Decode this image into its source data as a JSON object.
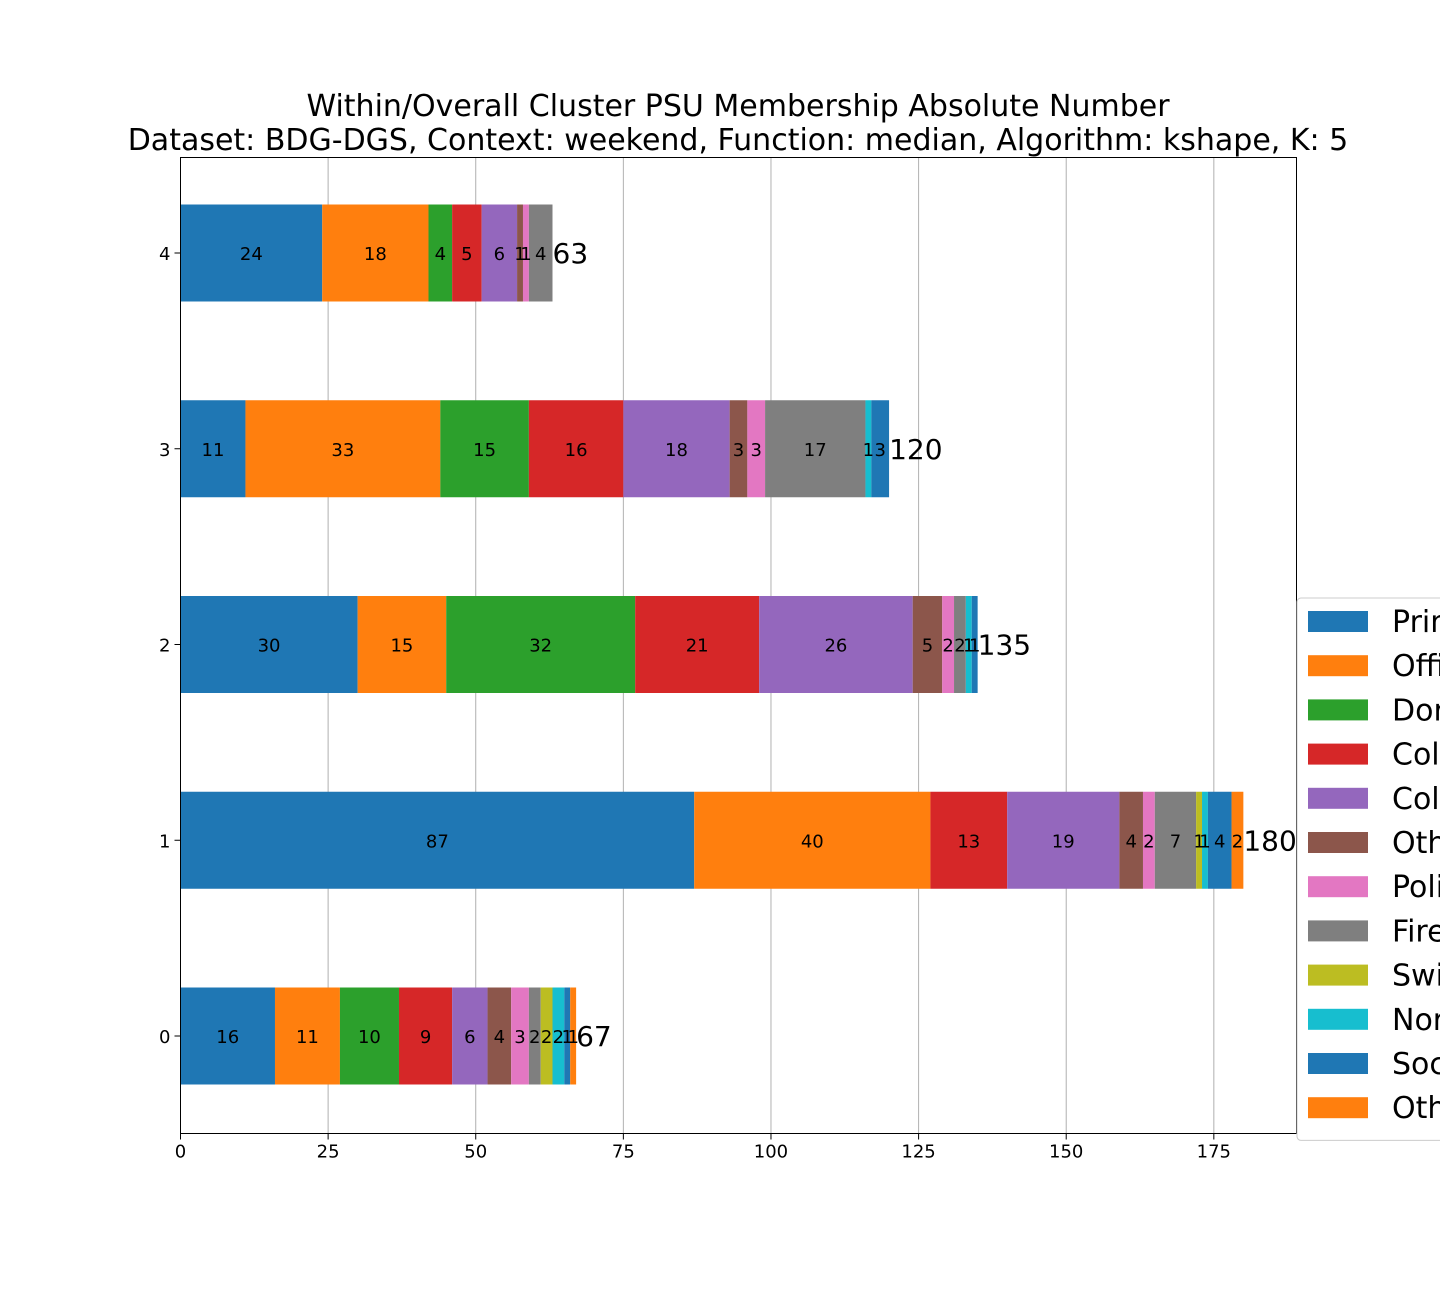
{
  "chart_data": {
    "type": "bar",
    "orientation": "horizontal",
    "stacked": true,
    "title": "Within/Overall Cluster PSU Membership Absolute Number",
    "subtitle": "Dataset: BDG-DGS, Context: weekend, Function: median, Algorithm: kshape, K: 5",
    "xlabel": "",
    "ylabel": "",
    "xlim": [
      0,
      189
    ],
    "xticks": [
      0,
      25,
      50,
      75,
      100,
      125,
      150,
      175
    ],
    "grid": "vertical",
    "legend_placement": "right (clipped)",
    "categories": [
      "0",
      "1",
      "2",
      "3",
      "4"
    ],
    "totals": [
      67,
      180,
      135,
      120,
      63
    ],
    "series": [
      {
        "name": "Prim",
        "color": "#1f77b4",
        "values": [
          16,
          87,
          30,
          11,
          24
        ]
      },
      {
        "name": "Offi",
        "color": "#ff7f0e",
        "values": [
          11,
          40,
          15,
          33,
          18
        ]
      },
      {
        "name": "Dor",
        "color": "#2ca02c",
        "values": [
          10,
          0,
          32,
          15,
          4
        ]
      },
      {
        "name": "Col",
        "color": "#d62728",
        "values": [
          9,
          13,
          21,
          16,
          5
        ]
      },
      {
        "name": "Col",
        "color": "#9467bd",
        "values": [
          6,
          19,
          26,
          18,
          6
        ]
      },
      {
        "name": "Oth",
        "color": "#8c564b",
        "values": [
          4,
          4,
          5,
          3,
          1
        ]
      },
      {
        "name": "Poli",
        "color": "#e377c2",
        "values": [
          3,
          2,
          2,
          3,
          1
        ]
      },
      {
        "name": "Fire",
        "color": "#7f7f7f",
        "values": [
          2,
          7,
          2,
          17,
          4
        ]
      },
      {
        "name": "Swi",
        "color": "#bcbd22",
        "values": [
          2,
          1,
          0,
          0,
          0
        ]
      },
      {
        "name": "Nor",
        "color": "#17becf",
        "values": [
          2,
          1,
          1,
          1,
          0
        ]
      },
      {
        "name": "Soc",
        "color": "#1f77b4",
        "values": [
          1,
          4,
          1,
          3,
          0
        ]
      },
      {
        "name": "Oth",
        "color": "#ff7f0e",
        "values": [
          1,
          2,
          0,
          0,
          0
        ]
      }
    ]
  }
}
